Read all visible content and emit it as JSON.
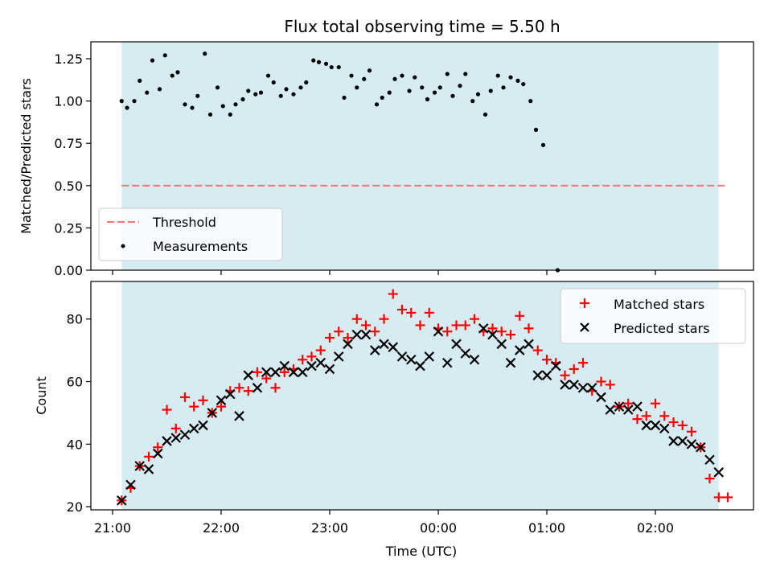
{
  "chart_data": [
    {
      "type": "scatter",
      "title": "Flux total observing time = 5.50 h",
      "ylabel": "Matched/Predicted stars",
      "xlabel": "",
      "ylim": [
        0,
        1.35
      ],
      "yticks": [
        "0.00",
        "0.25",
        "0.50",
        "0.75",
        "1.00",
        "1.25"
      ],
      "shaded_span": {
        "start": "21:05",
        "end": "02:35",
        "color": "#add8e6"
      },
      "threshold": {
        "name": "Threshold",
        "value": 0.5,
        "color": "#ff7373"
      },
      "legend": {
        "position": "lower-left",
        "entries": [
          "Threshold",
          "Measurements"
        ]
      },
      "series": [
        {
          "name": "Measurements",
          "color": "#000000",
          "points": [
            [
              "21:05",
              1.0
            ],
            [
              "21:08",
              0.96
            ],
            [
              "21:12",
              1.0
            ],
            [
              "21:15",
              1.12
            ],
            [
              "21:19",
              1.05
            ],
            [
              "21:22",
              1.24
            ],
            [
              "21:26",
              1.07
            ],
            [
              "21:29",
              1.27
            ],
            [
              "21:33",
              1.15
            ],
            [
              "21:36",
              1.17
            ],
            [
              "21:40",
              0.98
            ],
            [
              "21:44",
              0.96
            ],
            [
              "21:47",
              1.03
            ],
            [
              "21:51",
              1.28
            ],
            [
              "21:54",
              0.92
            ],
            [
              "21:58",
              1.08
            ],
            [
              "22:01",
              0.97
            ],
            [
              "22:05",
              0.92
            ],
            [
              "22:08",
              0.98
            ],
            [
              "22:12",
              1.01
            ],
            [
              "22:15",
              1.06
            ],
            [
              "22:19",
              1.04
            ],
            [
              "22:22",
              1.05
            ],
            [
              "22:26",
              1.15
            ],
            [
              "22:29",
              1.11
            ],
            [
              "22:33",
              1.03
            ],
            [
              "22:36",
              1.07
            ],
            [
              "22:40",
              1.04
            ],
            [
              "22:44",
              1.08
            ],
            [
              "22:47",
              1.11
            ],
            [
              "22:51",
              1.24
            ],
            [
              "22:54",
              1.23
            ],
            [
              "22:58",
              1.22
            ],
            [
              "23:01",
              1.2
            ],
            [
              "23:05",
              1.2
            ],
            [
              "23:08",
              1.02
            ],
            [
              "23:12",
              1.15
            ],
            [
              "23:15",
              1.08
            ],
            [
              "23:19",
              1.13
            ],
            [
              "23:22",
              1.18
            ],
            [
              "23:26",
              0.98
            ],
            [
              "23:29",
              1.02
            ],
            [
              "23:33",
              1.05
            ],
            [
              "23:36",
              1.13
            ],
            [
              "23:40",
              1.15
            ],
            [
              "23:44",
              1.06
            ],
            [
              "23:47",
              1.14
            ],
            [
              "23:51",
              1.08
            ],
            [
              "23:54",
              1.01
            ],
            [
              "23:58",
              1.05
            ],
            [
              "00:01",
              1.08
            ],
            [
              "00:05",
              1.16
            ],
            [
              "00:08",
              1.03
            ],
            [
              "00:12",
              1.09
            ],
            [
              "00:15",
              1.16
            ],
            [
              "00:19",
              1.0
            ],
            [
              "00:22",
              1.04
            ],
            [
              "00:26",
              0.92
            ],
            [
              "00:29",
              1.06
            ],
            [
              "00:33",
              1.15
            ],
            [
              "00:36",
              1.08
            ],
            [
              "00:40",
              1.14
            ],
            [
              "00:44",
              1.12
            ],
            [
              "00:47",
              1.1
            ],
            [
              "00:51",
              1.0
            ],
            [
              "00:54",
              0.83
            ],
            [
              "00:58",
              0.74
            ],
            [
              "01:06",
              0.0
            ]
          ]
        }
      ]
    },
    {
      "type": "scatter",
      "title": "",
      "xlabel": "Time (UTC)",
      "ylabel": "Count",
      "ylim": [
        19,
        92
      ],
      "yticks": [
        "20",
        "40",
        "60",
        "80"
      ],
      "xticks": [
        "21:00",
        "22:00",
        "23:00",
        "00:00",
        "01:00",
        "02:00"
      ],
      "shaded_span": {
        "start": "21:05",
        "end": "02:35",
        "color": "#add8e6"
      },
      "legend": {
        "position": "top-right",
        "entries": [
          "Matched stars",
          "Predicted stars"
        ]
      },
      "series": [
        {
          "name": "Matched stars",
          "marker": "+",
          "color": "#ff0000",
          "points": [
            [
              "21:05",
              22
            ],
            [
              "21:10",
              26
            ],
            [
              "21:15",
              33
            ],
            [
              "21:20",
              36
            ],
            [
              "21:25",
              39
            ],
            [
              "21:30",
              51
            ],
            [
              "21:35",
              45
            ],
            [
              "21:40",
              55
            ],
            [
              "21:45",
              52
            ],
            [
              "21:50",
              54
            ],
            [
              "21:55",
              50
            ],
            [
              "22:00",
              52
            ],
            [
              "22:05",
              57
            ],
            [
              "22:10",
              58
            ],
            [
              "22:15",
              57
            ],
            [
              "22:20",
              63
            ],
            [
              "22:25",
              61
            ],
            [
              "22:30",
              58
            ],
            [
              "22:35",
              63
            ],
            [
              "22:40",
              64
            ],
            [
              "22:45",
              67
            ],
            [
              "22:50",
              68
            ],
            [
              "22:55",
              70
            ],
            [
              "23:00",
              74
            ],
            [
              "23:05",
              76
            ],
            [
              "23:10",
              74
            ],
            [
              "23:15",
              80
            ],
            [
              "23:20",
              78
            ],
            [
              "23:25",
              76
            ],
            [
              "23:30",
              80
            ],
            [
              "23:35",
              88
            ],
            [
              "23:40",
              83
            ],
            [
              "23:45",
              82
            ],
            [
              "23:50",
              78
            ],
            [
              "23:55",
              82
            ],
            [
              "00:00",
              77
            ],
            [
              "00:05",
              76
            ],
            [
              "00:10",
              78
            ],
            [
              "00:15",
              78
            ],
            [
              "00:20",
              80
            ],
            [
              "00:25",
              76
            ],
            [
              "00:30",
              77
            ],
            [
              "00:35",
              76
            ],
            [
              "00:40",
              75
            ],
            [
              "00:45",
              81
            ],
            [
              "00:50",
              77
            ],
            [
              "00:55",
              70
            ],
            [
              "01:00",
              67
            ],
            [
              "01:05",
              66
            ],
            [
              "01:10",
              62
            ],
            [
              "01:15",
              64
            ],
            [
              "01:20",
              66
            ],
            [
              "01:25",
              57
            ],
            [
              "01:30",
              60
            ],
            [
              "01:35",
              59
            ],
            [
              "01:40",
              52
            ],
            [
              "01:45",
              53
            ],
            [
              "01:50",
              48
            ],
            [
              "01:55",
              49
            ],
            [
              "02:00",
              53
            ],
            [
              "02:05",
              49
            ],
            [
              "02:10",
              47
            ],
            [
              "02:15",
              46
            ],
            [
              "02:20",
              44
            ],
            [
              "02:25",
              39
            ],
            [
              "02:30",
              29
            ],
            [
              "02:35",
              23
            ],
            [
              "02:40",
              23
            ]
          ]
        },
        {
          "name": "Predicted stars",
          "marker": "x",
          "color": "#000000",
          "points": [
            [
              "21:05",
              22
            ],
            [
              "21:10",
              27
            ],
            [
              "21:15",
              33
            ],
            [
              "21:20",
              32
            ],
            [
              "21:25",
              37
            ],
            [
              "21:30",
              41
            ],
            [
              "21:35",
              42
            ],
            [
              "21:40",
              43
            ],
            [
              "21:45",
              45
            ],
            [
              "21:50",
              46
            ],
            [
              "21:55",
              50
            ],
            [
              "22:00",
              54
            ],
            [
              "22:05",
              56
            ],
            [
              "22:10",
              49
            ],
            [
              "22:15",
              62
            ],
            [
              "22:20",
              58
            ],
            [
              "22:25",
              63
            ],
            [
              "22:30",
              63
            ],
            [
              "22:35",
              65
            ],
            [
              "22:40",
              63
            ],
            [
              "22:45",
              63
            ],
            [
              "22:50",
              65
            ],
            [
              "22:55",
              66
            ],
            [
              "23:00",
              64
            ],
            [
              "23:05",
              68
            ],
            [
              "23:10",
              72
            ],
            [
              "23:15",
              75
            ],
            [
              "23:20",
              75
            ],
            [
              "23:25",
              70
            ],
            [
              "23:30",
              72
            ],
            [
              "23:35",
              71
            ],
            [
              "23:40",
              68
            ],
            [
              "23:45",
              67
            ],
            [
              "23:50",
              65
            ],
            [
              "23:55",
              68
            ],
            [
              "00:00",
              76
            ],
            [
              "00:05",
              66
            ],
            [
              "00:10",
              72
            ],
            [
              "00:15",
              69
            ],
            [
              "00:20",
              67
            ],
            [
              "00:25",
              77
            ],
            [
              "00:30",
              75
            ],
            [
              "00:35",
              72
            ],
            [
              "00:40",
              66
            ],
            [
              "00:45",
              70
            ],
            [
              "00:50",
              72
            ],
            [
              "00:55",
              62
            ],
            [
              "01:00",
              62
            ],
            [
              "01:05",
              65
            ],
            [
              "01:10",
              59
            ],
            [
              "01:15",
              59
            ],
            [
              "01:20",
              58
            ],
            [
              "01:25",
              58
            ],
            [
              "01:30",
              55
            ],
            [
              "01:35",
              51
            ],
            [
              "01:40",
              52
            ],
            [
              "01:45",
              51
            ],
            [
              "01:50",
              52
            ],
            [
              "01:55",
              46
            ],
            [
              "02:00",
              46
            ],
            [
              "02:05",
              45
            ],
            [
              "02:10",
              41
            ],
            [
              "02:15",
              41
            ],
            [
              "02:20",
              40
            ],
            [
              "02:25",
              39
            ],
            [
              "02:30",
              35
            ],
            [
              "02:35",
              31
            ]
          ]
        }
      ]
    }
  ]
}
